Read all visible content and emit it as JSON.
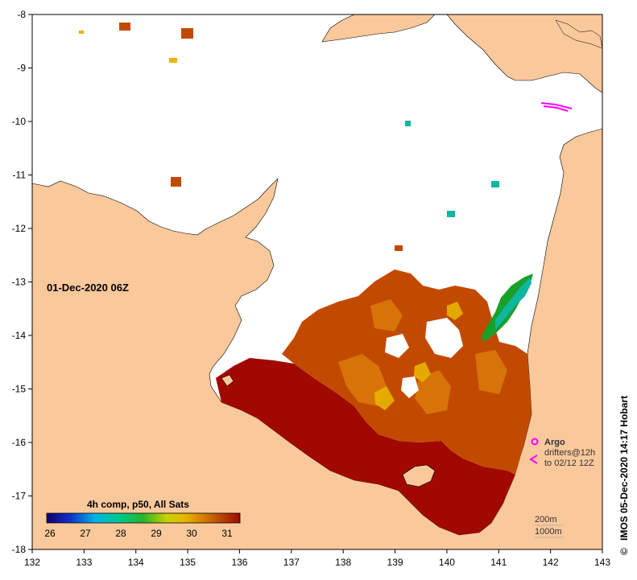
{
  "map": {
    "timestamp_label": "01-Dec-2020 06Z",
    "x_ticks": [
      "132",
      "133",
      "134",
      "135",
      "136",
      "137",
      "138",
      "139",
      "140",
      "141",
      "142",
      "143"
    ],
    "y_ticks": [
      "-8",
      "-9",
      "-10",
      "-11",
      "-12",
      "-13",
      "-14",
      "-15",
      "-16",
      "-17",
      "-18"
    ],
    "colors": {
      "land": "#f9c89b",
      "ocean": "#ffffff",
      "sst_hot": "#a00800",
      "sst_warm": "#c24a00",
      "sst_orange": "#d97a0a",
      "sst_yellow": "#e8b400",
      "sst_green": "#1aa02a",
      "sst_teal": "#0fb6a0",
      "drifter": "#ff00ff",
      "axis": "#000000"
    }
  },
  "colorbar": {
    "title": "4h comp, p50, All Sats",
    "ticks": [
      "26",
      "27",
      "28",
      "29",
      "30",
      "31"
    ]
  },
  "legend": {
    "argo_label": "Argo",
    "drifters_label": "drifters@12h",
    "drifters_range": "to 02/12 12Z",
    "contour_200": "200m",
    "contour_1000": "1000m"
  },
  "credit": "IMOS 05-Dec-2020 14:17 Hobart",
  "copyright_symbol": "©"
}
